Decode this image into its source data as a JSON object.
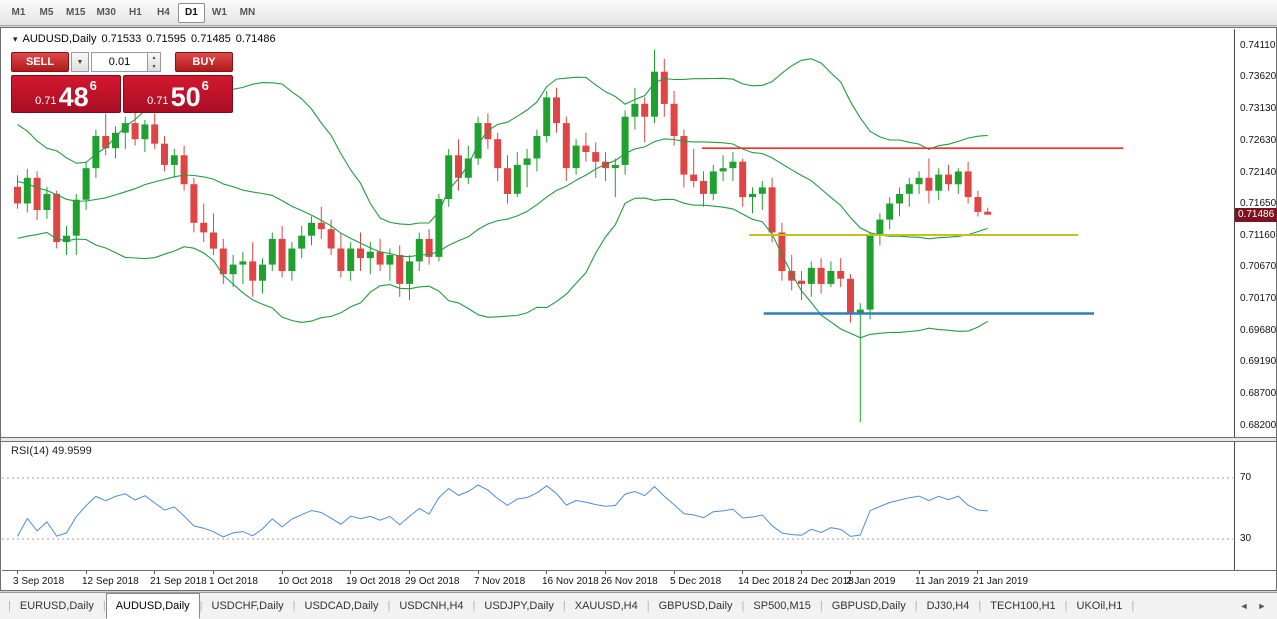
{
  "toolbar": {
    "timeframes": [
      {
        "label": "M1",
        "active": false
      },
      {
        "label": "M5",
        "active": false
      },
      {
        "label": "M15",
        "active": false
      },
      {
        "label": "M30",
        "active": false
      },
      {
        "label": "H1",
        "active": false
      },
      {
        "label": "H4",
        "active": false
      },
      {
        "label": "D1",
        "active": true
      },
      {
        "label": "W1",
        "active": false
      },
      {
        "label": "MN",
        "active": false
      }
    ]
  },
  "icons": {
    "collapse": "▾",
    "dropdown": "▼",
    "spin_up": "▲",
    "spin_down": "▼",
    "scroll_left": "◄",
    "scroll_right": "►"
  },
  "chart_header": {
    "symbol": "AUDUSD,Daily",
    "open": "0.71533",
    "high": "0.71595",
    "low": "0.71485",
    "close": "0.71486"
  },
  "trade_panel": {
    "sell_label": "SELL",
    "buy_label": "BUY",
    "lot_value": "0.01",
    "sell_price": {
      "prefix": "0.71",
      "big": "48",
      "sup": "6"
    },
    "buy_price": {
      "prefix": "0.71",
      "big": "50",
      "sup": "6"
    }
  },
  "colors": {
    "up": "#1fa12f",
    "down": "#e14444",
    "bollinger": "#1f9e3d",
    "rsi": "#4a90d9",
    "hline_red": "#ff2a2a",
    "hline_yellow": "#c2c219",
    "hline_blue": "#2f7ec0",
    "price_tag_bg": "#7c1322",
    "trade_red": "#c4112c"
  },
  "chart_data": {
    "type": "candlestick",
    "title": "AUDUSD,Daily",
    "symbol": "AUDUSD",
    "period": "Daily",
    "grid": false,
    "ylim": [
      0.68029,
      0.74374
    ],
    "current_price": 0.71486,
    "current_price_label": "0.71486",
    "price_axis_labels": [
      "0.74110",
      "0.73620",
      "0.73130",
      "0.72630",
      "0.72140",
      "0.71650",
      "0.71160",
      "0.70670",
      "0.70170",
      "0.69680",
      "0.69190",
      "0.68700",
      "0.68200"
    ],
    "time_labels": [
      {
        "text": "3 Sep 2018",
        "index": 0
      },
      {
        "text": "12 Sep 2018",
        "index": 7
      },
      {
        "text": "21 Sep 2018",
        "index": 14
      },
      {
        "text": "1 Oct 2018",
        "index": 20
      },
      {
        "text": "10 Oct 2018",
        "index": 27
      },
      {
        "text": "19 Oct 2018",
        "index": 34
      },
      {
        "text": "29 Oct 2018",
        "index": 40
      },
      {
        "text": "7 Nov 2018",
        "index": 47
      },
      {
        "text": "16 Nov 2018",
        "index": 54
      },
      {
        "text": "26 Nov 2018",
        "index": 60
      },
      {
        "text": "5 Dec 2018",
        "index": 67
      },
      {
        "text": "14 Dec 2018",
        "index": 74
      },
      {
        "text": "24 Dec 2018",
        "index": 80
      },
      {
        "text": "2 Jan 2019",
        "index": 85
      },
      {
        "text": "11 Jan 2019",
        "index": 92
      },
      {
        "text": "21 Jan 2019",
        "index": 98
      }
    ],
    "warmup_closes": [
      0.729,
      0.7275,
      0.7285,
      0.726,
      0.7245,
      0.7255,
      0.723,
      0.7215,
      0.7225,
      0.72,
      0.7185,
      0.7195,
      0.717,
      0.716,
      0.7175,
      0.715,
      0.716,
      0.714,
      0.715,
      0.7165
    ],
    "candles": [
      [
        0.7192,
        0.721,
        0.7158,
        0.7166
      ],
      [
        0.7166,
        0.722,
        0.7152,
        0.7206
      ],
      [
        0.7206,
        0.7216,
        0.714,
        0.7156
      ],
      [
        0.7156,
        0.7192,
        0.7142,
        0.7181
      ],
      [
        0.7181,
        0.7186,
        0.7096,
        0.7106
      ],
      [
        0.7106,
        0.7131,
        0.7086,
        0.7116
      ],
      [
        0.7116,
        0.7181,
        0.7086,
        0.7172
      ],
      [
        0.7172,
        0.7231,
        0.7156,
        0.7221
      ],
      [
        0.7221,
        0.7281,
        0.7206,
        0.7271
      ],
      [
        0.7271,
        0.7306,
        0.7241,
        0.7252
      ],
      [
        0.7252,
        0.7286,
        0.7236,
        0.7276
      ],
      [
        0.7276,
        0.7301,
        0.7251,
        0.7291
      ],
      [
        0.7291,
        0.7311,
        0.7256,
        0.7266
      ],
      [
        0.7266,
        0.7296,
        0.7246,
        0.7289
      ],
      [
        0.7289,
        0.7306,
        0.7251,
        0.7259
      ],
      [
        0.7259,
        0.7271,
        0.7216,
        0.7226
      ],
      [
        0.7226,
        0.7251,
        0.7206,
        0.7241
      ],
      [
        0.7241,
        0.7256,
        0.7186,
        0.7196
      ],
      [
        0.7196,
        0.7206,
        0.7121,
        0.7136
      ],
      [
        0.7136,
        0.7166,
        0.7106,
        0.7121
      ],
      [
        0.7121,
        0.7151,
        0.7086,
        0.7096
      ],
      [
        0.7096,
        0.7111,
        0.7041,
        0.7056
      ],
      [
        0.7056,
        0.7086,
        0.7036,
        0.7071
      ],
      [
        0.7071,
        0.7091,
        0.7041,
        0.7076
      ],
      [
        0.7076,
        0.7106,
        0.7021,
        0.7046
      ],
      [
        0.7046,
        0.7081,
        0.7026,
        0.7071
      ],
      [
        0.7071,
        0.7121,
        0.7061,
        0.7111
      ],
      [
        0.7111,
        0.7131,
        0.7051,
        0.7061
      ],
      [
        0.7061,
        0.7106,
        0.7046,
        0.7096
      ],
      [
        0.7096,
        0.7131,
        0.7081,
        0.7116
      ],
      [
        0.7116,
        0.7146,
        0.7101,
        0.7136
      ],
      [
        0.7136,
        0.7161,
        0.7111,
        0.7126
      ],
      [
        0.7126,
        0.7141,
        0.7086,
        0.7096
      ],
      [
        0.7096,
        0.7121,
        0.7051,
        0.7061
      ],
      [
        0.7061,
        0.7106,
        0.7046,
        0.7096
      ],
      [
        0.7096,
        0.7121,
        0.7061,
        0.7081
      ],
      [
        0.7081,
        0.7106,
        0.7056,
        0.7091
      ],
      [
        0.7091,
        0.7111,
        0.7061,
        0.7071
      ],
      [
        0.7071,
        0.7096,
        0.7046,
        0.7086
      ],
      [
        0.7086,
        0.7101,
        0.7021,
        0.7041
      ],
      [
        0.7041,
        0.7086,
        0.7016,
        0.7076
      ],
      [
        0.7076,
        0.7121,
        0.7061,
        0.7111
      ],
      [
        0.7111,
        0.7126,
        0.7071,
        0.7083
      ],
      [
        0.7083,
        0.7181,
        0.7076,
        0.7173
      ],
      [
        0.7173,
        0.7251,
        0.7161,
        0.7241
      ],
      [
        0.7241,
        0.7266,
        0.7186,
        0.7206
      ],
      [
        0.7206,
        0.7256,
        0.7196,
        0.7236
      ],
      [
        0.7236,
        0.7301,
        0.7226,
        0.7291
      ],
      [
        0.7291,
        0.7306,
        0.7251,
        0.7266
      ],
      [
        0.7266,
        0.7276,
        0.7201,
        0.7221
      ],
      [
        0.7221,
        0.7241,
        0.7166,
        0.7181
      ],
      [
        0.7181,
        0.7246,
        0.7176,
        0.7226
      ],
      [
        0.7226,
        0.7251,
        0.7191,
        0.7236
      ],
      [
        0.7236,
        0.7281,
        0.7216,
        0.7271
      ],
      [
        0.7271,
        0.7341,
        0.7261,
        0.7331
      ],
      [
        0.7331,
        0.7346,
        0.7276,
        0.7291
      ],
      [
        0.7291,
        0.7301,
        0.7201,
        0.7221
      ],
      [
        0.7221,
        0.7266,
        0.7211,
        0.7256
      ],
      [
        0.7256,
        0.7276,
        0.7231,
        0.7246
      ],
      [
        0.7246,
        0.7261,
        0.7206,
        0.7231
      ],
      [
        0.7231,
        0.7246,
        0.7201,
        0.7221
      ],
      [
        0.7221,
        0.7236,
        0.7176,
        0.7226
      ],
      [
        0.7226,
        0.7311,
        0.7211,
        0.7301
      ],
      [
        0.7301,
        0.7346,
        0.7281,
        0.7321
      ],
      [
        0.7321,
        0.7331,
        0.7261,
        0.7301
      ],
      [
        0.7301,
        0.7405,
        0.7291,
        0.7371
      ],
      [
        0.7371,
        0.7391,
        0.7301,
        0.7321
      ],
      [
        0.7321,
        0.7341,
        0.7256,
        0.7271
      ],
      [
        0.7271,
        0.7281,
        0.7191,
        0.7211
      ],
      [
        0.7211,
        0.7251,
        0.7191,
        0.7201
      ],
      [
        0.7201,
        0.7216,
        0.7161,
        0.7181
      ],
      [
        0.7181,
        0.7226,
        0.7171,
        0.7216
      ],
      [
        0.7216,
        0.7241,
        0.7201,
        0.7221
      ],
      [
        0.7221,
        0.7246,
        0.7201,
        0.7231
      ],
      [
        0.7231,
        0.7236,
        0.7161,
        0.7176
      ],
      [
        0.7176,
        0.7191,
        0.7151,
        0.7181
      ],
      [
        0.7181,
        0.7201,
        0.7156,
        0.7191
      ],
      [
        0.7191,
        0.7206,
        0.7106,
        0.7121
      ],
      [
        0.7121,
        0.7136,
        0.7046,
        0.7061
      ],
      [
        0.7061,
        0.7086,
        0.7031,
        0.7046
      ],
      [
        0.7046,
        0.7061,
        0.7016,
        0.7041
      ],
      [
        0.7041,
        0.7076,
        0.7021,
        0.7066
      ],
      [
        0.7066,
        0.7081,
        0.7026,
        0.7041
      ],
      [
        0.7041,
        0.7076,
        0.7036,
        0.7061
      ],
      [
        0.7061,
        0.7081,
        0.7036,
        0.7049
      ],
      [
        0.7049,
        0.7056,
        0.6981,
        0.6996
      ],
      [
        0.6996,
        0.7011,
        0.6826,
        0.7001
      ],
      [
        0.7001,
        0.7121,
        0.6986,
        0.7116
      ],
      [
        0.7116,
        0.7151,
        0.7101,
        0.7141
      ],
      [
        0.7141,
        0.7176,
        0.7126,
        0.7166
      ],
      [
        0.7166,
        0.7191,
        0.7146,
        0.7181
      ],
      [
        0.7181,
        0.7206,
        0.7161,
        0.7196
      ],
      [
        0.7196,
        0.7216,
        0.7181,
        0.7206
      ],
      [
        0.7206,
        0.7236,
        0.7166,
        0.7186
      ],
      [
        0.7186,
        0.7221,
        0.7171,
        0.7211
      ],
      [
        0.7211,
        0.7226,
        0.7186,
        0.7196
      ],
      [
        0.7196,
        0.7221,
        0.7181,
        0.7216
      ],
      [
        0.7216,
        0.7231,
        0.7166,
        0.7176
      ],
      [
        0.7176,
        0.7186,
        0.7146,
        0.7153
      ],
      [
        0.71533,
        0.71595,
        0.71485,
        0.71486
      ]
    ],
    "indicators": {
      "bollinger": {
        "name": "Bollinger Bands",
        "period": 20,
        "deviation": 2,
        "color": "#1f9e3d"
      },
      "rsi": {
        "name": "RSI",
        "period": 14,
        "value": 49.9599,
        "value_label": "RSI(14) 49.9599",
        "levels": [
          70,
          30
        ],
        "color": "#4a90d9"
      }
    },
    "hlines": [
      {
        "price": 0.7252,
        "start_index": 70.2,
        "end_index": 113.2,
        "color": "#ff2a2a",
        "width": 1.6
      },
      {
        "price": 0.7117,
        "start_index": 75.0,
        "end_index": 108.6,
        "color": "#c2c219",
        "width": 2
      },
      {
        "price": 0.6995,
        "start_index": 76.5,
        "end_index": 110.2,
        "color": "#2f7ec0",
        "width": 2.4
      }
    ]
  },
  "tabs": {
    "items": [
      {
        "label": "EURUSD,Daily",
        "active": false
      },
      {
        "label": "AUDUSD,Daily",
        "active": true
      },
      {
        "label": "USDCHF,Daily",
        "active": false
      },
      {
        "label": "USDCAD,Daily",
        "active": false
      },
      {
        "label": "USDCNH,H4",
        "active": false
      },
      {
        "label": "USDJPY,Daily",
        "active": false
      },
      {
        "label": "XAUUSD,H4",
        "active": false
      },
      {
        "label": "GBPUSD,Daily",
        "active": false
      },
      {
        "label": "SP500,M15",
        "active": false
      },
      {
        "label": "GBPUSD,Daily",
        "active": false
      },
      {
        "label": "DJ30,H4",
        "active": false
      },
      {
        "label": "TECH100,H1",
        "active": false
      },
      {
        "label": "UKOil,H1",
        "active": false
      }
    ]
  }
}
